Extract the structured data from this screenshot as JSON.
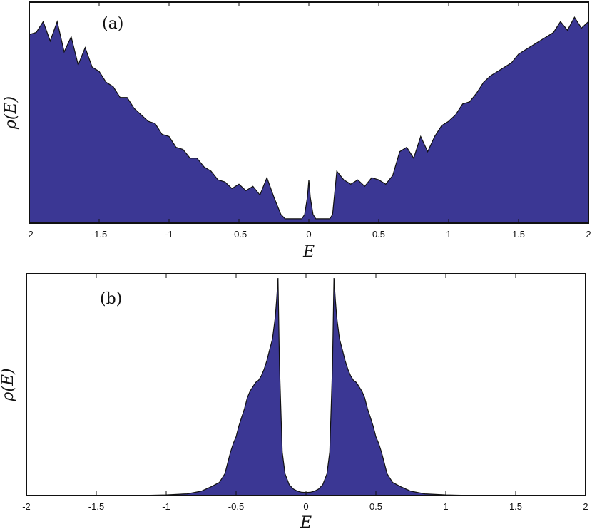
{
  "chart_data": [
    {
      "panel_label": "(a)",
      "type": "area",
      "xlabel": "E",
      "ylabel": "ρ(E)",
      "xlim": [
        -2,
        2
      ],
      "ylim": [
        0,
        1
      ],
      "xticks": [
        -2,
        -1.5,
        -1,
        -0.5,
        0,
        0.5,
        1,
        1.5,
        2
      ],
      "xtick_labels": [
        "-2",
        "-1.5",
        "-1",
        "-0.5",
        "0",
        "0.5",
        "1",
        "1.5",
        "2"
      ],
      "y_ticks_shown": false,
      "grid": false,
      "fill_color": "#3b3794",
      "line_color": "#111111",
      "series": [
        {
          "x": [
            -2.0,
            -1.95,
            -1.9,
            -1.85,
            -1.8,
            -1.75,
            -1.7,
            -1.65,
            -1.6,
            -1.55,
            -1.5,
            -1.45,
            -1.4,
            -1.35,
            -1.3,
            -1.25,
            -1.2,
            -1.15,
            -1.1,
            -1.05,
            -1.0,
            -0.95,
            -0.9,
            -0.85,
            -0.8,
            -0.75,
            -0.7,
            -0.65,
            -0.6,
            -0.55,
            -0.5,
            -0.45,
            -0.4,
            -0.35,
            -0.3,
            -0.25,
            -0.2,
            -0.17,
            -0.15,
            -0.12,
            -0.1,
            -0.07,
            -0.05,
            -0.03,
            -0.01,
            0.0,
            0.01,
            0.03,
            0.05,
            0.07,
            0.1,
            0.12,
            0.15,
            0.17,
            0.2,
            0.25,
            0.3,
            0.35,
            0.4,
            0.45,
            0.5,
            0.55,
            0.6,
            0.65,
            0.7,
            0.75,
            0.8,
            0.85,
            0.9,
            0.95,
            1.0,
            1.05,
            1.1,
            1.15,
            1.2,
            1.25,
            1.3,
            1.35,
            1.4,
            1.45,
            1.5,
            1.55,
            1.6,
            1.65,
            1.7,
            1.75,
            1.8,
            1.85,
            1.9,
            1.95,
            2.0
          ],
          "y": [
            0.87,
            0.88,
            0.93,
            0.84,
            0.93,
            0.79,
            0.86,
            0.73,
            0.81,
            0.72,
            0.7,
            0.65,
            0.63,
            0.58,
            0.58,
            0.53,
            0.5,
            0.47,
            0.46,
            0.41,
            0.4,
            0.35,
            0.34,
            0.3,
            0.3,
            0.26,
            0.24,
            0.2,
            0.19,
            0.16,
            0.18,
            0.15,
            0.17,
            0.13,
            0.21,
            0.12,
            0.04,
            0.02,
            0.02,
            0.02,
            0.02,
            0.02,
            0.02,
            0.04,
            0.12,
            0.2,
            0.12,
            0.04,
            0.02,
            0.02,
            0.02,
            0.02,
            0.02,
            0.04,
            0.24,
            0.2,
            0.18,
            0.2,
            0.17,
            0.21,
            0.2,
            0.18,
            0.22,
            0.33,
            0.35,
            0.3,
            0.4,
            0.33,
            0.4,
            0.45,
            0.47,
            0.5,
            0.55,
            0.56,
            0.6,
            0.65,
            0.68,
            0.7,
            0.72,
            0.74,
            0.78,
            0.8,
            0.82,
            0.84,
            0.86,
            0.88,
            0.93,
            0.89,
            0.95,
            0.9,
            0.93
          ]
        }
      ]
    },
    {
      "panel_label": "(b)",
      "type": "area",
      "xlabel": "E",
      "ylabel": "ρ(E)",
      "xlim": [
        -2,
        2
      ],
      "ylim": [
        0,
        1
      ],
      "xticks": [
        -2,
        -1.5,
        -1,
        -0.5,
        0,
        0.5,
        1,
        1.5,
        2
      ],
      "xtick_labels": [
        "-2",
        "-1.5",
        "-1",
        "-0.5",
        "0",
        "0.5",
        "1",
        "1.5",
        "2"
      ],
      "y_ticks_shown": false,
      "grid": false,
      "fill_color": "#3b3794",
      "line_color": "#111111",
      "series": [
        {
          "x": [
            -2.0,
            -1.2,
            -1.0,
            -0.85,
            -0.75,
            -0.68,
            -0.62,
            -0.58,
            -0.56,
            -0.54,
            -0.52,
            -0.5,
            -0.48,
            -0.46,
            -0.44,
            -0.42,
            -0.4,
            -0.38,
            -0.36,
            -0.34,
            -0.32,
            -0.3,
            -0.28,
            -0.26,
            -0.24,
            -0.22,
            -0.21,
            -0.2,
            -0.19,
            -0.17,
            -0.15,
            -0.12,
            -0.09,
            -0.06,
            -0.03,
            0.0,
            0.03,
            0.06,
            0.09,
            0.12,
            0.15,
            0.17,
            0.19,
            0.2,
            0.21,
            0.22,
            0.24,
            0.26,
            0.28,
            0.3,
            0.32,
            0.34,
            0.36,
            0.38,
            0.4,
            0.42,
            0.44,
            0.46,
            0.48,
            0.5,
            0.52,
            0.54,
            0.56,
            0.58,
            0.62,
            0.68,
            0.75,
            0.85,
            1.0,
            1.2,
            2.0
          ],
          "y": [
            0.0,
            0.0,
            0.003,
            0.008,
            0.02,
            0.04,
            0.06,
            0.1,
            0.15,
            0.2,
            0.24,
            0.27,
            0.32,
            0.36,
            0.4,
            0.45,
            0.48,
            0.5,
            0.52,
            0.53,
            0.55,
            0.58,
            0.62,
            0.67,
            0.72,
            0.82,
            0.9,
            1.0,
            0.6,
            0.2,
            0.1,
            0.05,
            0.03,
            0.02,
            0.015,
            0.014,
            0.015,
            0.02,
            0.03,
            0.05,
            0.1,
            0.2,
            0.6,
            1.0,
            0.9,
            0.82,
            0.72,
            0.67,
            0.62,
            0.58,
            0.55,
            0.53,
            0.52,
            0.5,
            0.48,
            0.45,
            0.4,
            0.36,
            0.32,
            0.27,
            0.24,
            0.2,
            0.15,
            0.1,
            0.06,
            0.04,
            0.02,
            0.008,
            0.003,
            0.0,
            0.0
          ]
        }
      ]
    }
  ]
}
